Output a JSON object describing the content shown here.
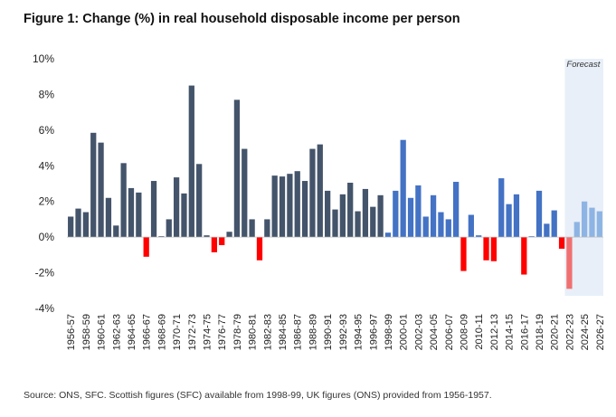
{
  "figure": {
    "title": "Figure 1: Change (%) in real household disposable income per person",
    "source": "Source: ONS, SFC. Scottish figures (SFC) available from 1998-99, UK figures (ONS) provided from 1956-1957.",
    "forecast_label": "Forecast"
  },
  "colors": {
    "ons": "#44546A",
    "sfc": "#4472C4",
    "negative": "#FF0000",
    "forecast_positive": "#8EB4E3",
    "forecast_negative": "#F07070",
    "forecast_shade": "#E8EFF8"
  },
  "chart_data": {
    "type": "bar",
    "title": "Figure 1: Change (%) in real household disposable income per person",
    "xlabel": "",
    "ylabel": "",
    "ylim": [
      -4,
      10
    ],
    "yticks": [
      "10%",
      "8%",
      "6%",
      "4%",
      "2%",
      "0%",
      "-2%",
      "-4%"
    ],
    "ytick_values": [
      10,
      8,
      6,
      4,
      2,
      0,
      -2,
      -4
    ],
    "grid": false,
    "forecast_start_index": 66,
    "sfc_start_index": 42,
    "categories": [
      "1956-57",
      "1957-58",
      "1958-59",
      "1959-60",
      "1960-61",
      "1961-62",
      "1962-63",
      "1963-64",
      "1964-65",
      "1965-66",
      "1966-67",
      "1967-68",
      "1968-69",
      "1969-70",
      "1970-71",
      "1971-72",
      "1972-73",
      "1973-74",
      "1974-75",
      "1975-76",
      "1976-77",
      "1977-78",
      "1978-79",
      "1979-80",
      "1980-81",
      "1981-82",
      "1982-83",
      "1983-84",
      "1984-85",
      "1985-86",
      "1986-87",
      "1987-88",
      "1988-89",
      "1989-90",
      "1990-91",
      "1991-92",
      "1992-93",
      "1993-94",
      "1994-95",
      "1995-96",
      "1996-97",
      "1997-98",
      "1998-99",
      "1999-00",
      "2000-01",
      "2001-02",
      "2002-03",
      "2003-04",
      "2004-05",
      "2005-06",
      "2006-07",
      "2007-08",
      "2008-09",
      "2009-10",
      "2010-11",
      "2011-12",
      "2012-13",
      "2013-14",
      "2014-15",
      "2015-16",
      "2016-17",
      "2017-18",
      "2018-19",
      "2019-20",
      "2020-21",
      "2021-22",
      "2022-23",
      "2023-24",
      "2024-25",
      "2025-26",
      "2026-27"
    ],
    "tick_labels": [
      "1956-57",
      "1958-59",
      "1960-61",
      "1962-63",
      "1964-65",
      "1966-67",
      "1968-69",
      "1970-71",
      "1972-73",
      "1974-75",
      "1976-77",
      "1978-79",
      "1980-81",
      "1982-83",
      "1984-85",
      "1986-87",
      "1988-89",
      "1990-91",
      "1992-93",
      "1994-95",
      "1996-97",
      "1998-99",
      "2000-01",
      "2002-03",
      "2004-05",
      "2006-07",
      "2008-09",
      "2010-11",
      "2012-13",
      "2014-15",
      "2016-17",
      "2018-19",
      "2020-21",
      "2022-23",
      "2024-25",
      "2026-27"
    ],
    "values": [
      1.15,
      1.6,
      1.4,
      5.85,
      5.3,
      2.2,
      0.65,
      4.15,
      2.75,
      2.5,
      -1.1,
      3.15,
      0.05,
      1.0,
      3.35,
      2.45,
      8.5,
      4.1,
      0.1,
      -0.85,
      -0.45,
      0.3,
      7.7,
      4.95,
      1.0,
      -1.3,
      1.0,
      3.45,
      3.4,
      3.55,
      3.7,
      3.15,
      4.95,
      5.2,
      2.6,
      1.55,
      2.4,
      3.05,
      1.45,
      2.7,
      1.7,
      2.35,
      0.25,
      2.6,
      5.45,
      2.2,
      2.9,
      1.15,
      2.35,
      1.4,
      1.0,
      3.1,
      -1.9,
      1.25,
      0.1,
      -1.3,
      -1.35,
      3.3,
      1.85,
      2.4,
      -2.1,
      0.05,
      2.6,
      0.75,
      1.5,
      -0.65,
      -2.9,
      0.85,
      2.0,
      1.65,
      1.45
    ]
  }
}
